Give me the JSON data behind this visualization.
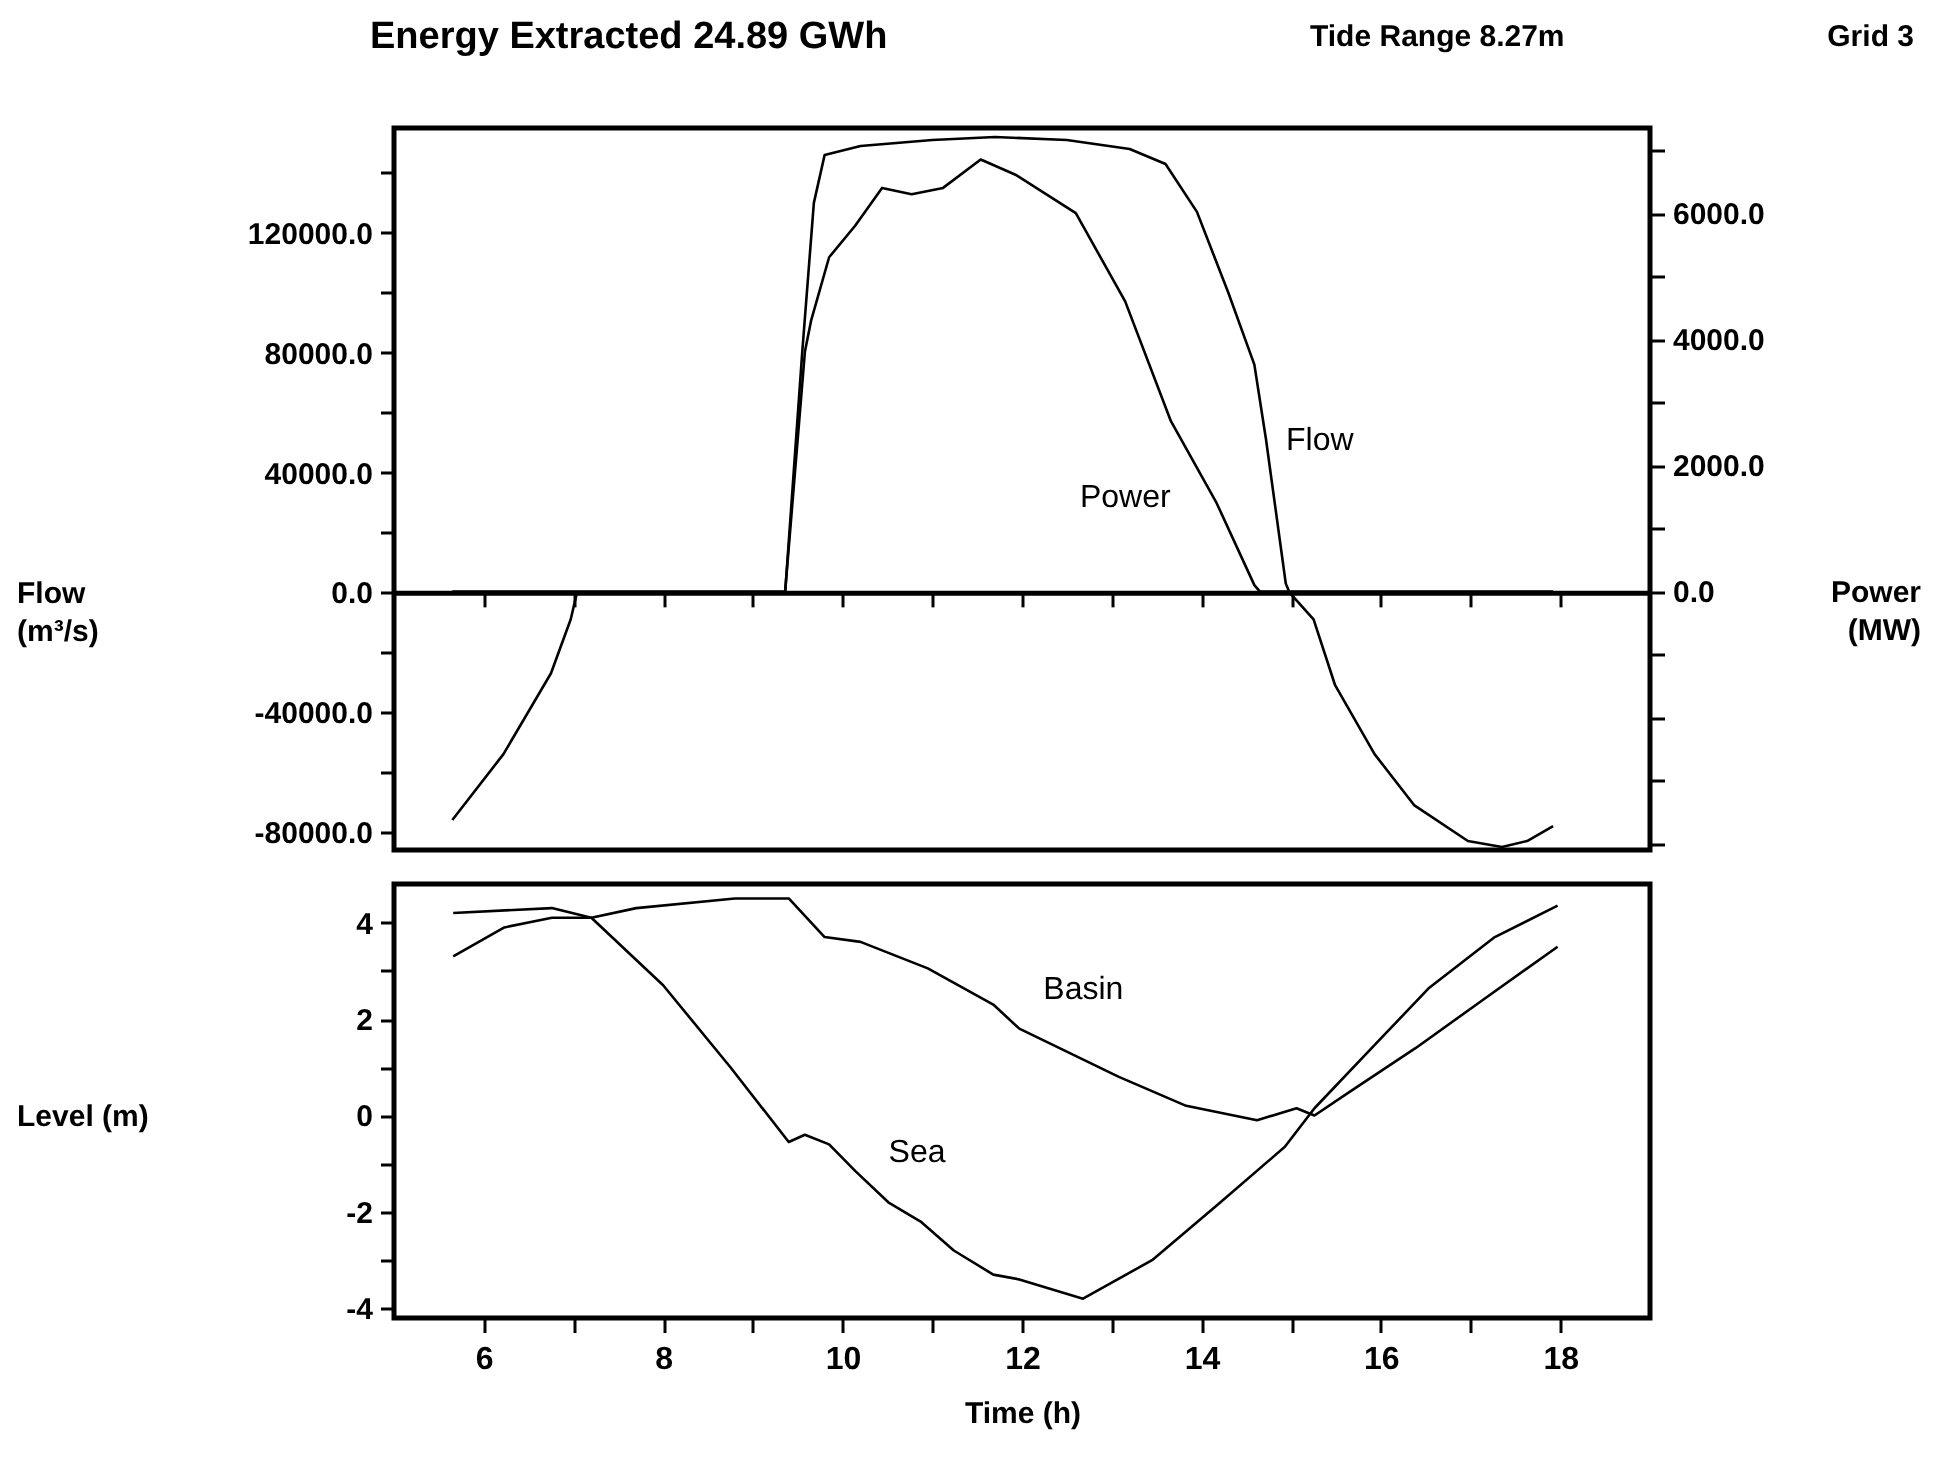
{
  "chart_data": [
    {
      "type": "line",
      "title": "Energy Extracted 24.89 GWh",
      "annotations": [
        "Tide Range 8.27m",
        "Grid 3"
      ],
      "ylabel": "Flow (m³/s)",
      "y2label": "Power (MW)",
      "tick_labels": "y",
      "xlim": [
        5,
        19
      ],
      "xticks": [
        {
          "value": 6,
          "label": null
        },
        {
          "value": 7,
          "label": null
        },
        {
          "value": 8,
          "label": null
        },
        {
          "value": 9,
          "label": null
        },
        {
          "value": 10,
          "label": null
        },
        {
          "value": 11,
          "label": null
        },
        {
          "value": 12,
          "label": null
        },
        {
          "value": 13,
          "label": null
        },
        {
          "value": 14,
          "label": null
        },
        {
          "value": 15,
          "label": null
        },
        {
          "value": 16,
          "label": null
        },
        {
          "value": 17,
          "label": null
        },
        {
          "value": 18,
          "label": null
        }
      ],
      "ylim": [
        -86000,
        155000
      ],
      "yticks": [
        {
          "value": -80000,
          "label": "-80000.0"
        },
        {
          "value": -60000,
          "label": null
        },
        {
          "value": -40000,
          "label": "-40000.0"
        },
        {
          "value": -20000,
          "label": null
        },
        {
          "value": 0,
          "label": "0.0"
        },
        {
          "value": 20000,
          "label": null
        },
        {
          "value": 40000,
          "label": "40000.0"
        },
        {
          "value": 60000,
          "label": null
        },
        {
          "value": 80000,
          "label": "80000.0"
        },
        {
          "value": 100000,
          "label": null
        },
        {
          "value": 120000,
          "label": "120000.0"
        },
        {
          "value": 140000,
          "label": null
        }
      ],
      "y2lim": [
        -4100,
        7350
      ],
      "y2ticks": [
        {
          "value": -4000,
          "label": null
        },
        {
          "value": -3000,
          "label": null
        },
        {
          "value": -2000,
          "label": null
        },
        {
          "value": -1000,
          "label": null
        },
        {
          "value": 0,
          "label": "0.0"
        },
        {
          "value": 1000,
          "label": null
        },
        {
          "value": 2000,
          "label": "2000.0"
        },
        {
          "value": 3000,
          "label": null
        },
        {
          "value": 4000,
          "label": "4000.0"
        },
        {
          "value": 5000,
          "label": null
        },
        {
          "value": 6000,
          "label": "6000.0"
        },
        {
          "value": 7000,
          "label": null
        }
      ],
      "series": [
        {
          "name": "Flow",
          "color": "#000000",
          "x": [
            5.65,
            6.22,
            6.75,
            6.97,
            7.04,
            9.36,
            9.55,
            9.68,
            9.8,
            10.2,
            11.0,
            11.7,
            12.5,
            13.2,
            13.6,
            13.95,
            14.3,
            14.59,
            14.72,
            14.94,
            14.98,
            15.25,
            15.49,
            15.93,
            16.37,
            16.97,
            17.35,
            17.63,
            17.92
          ],
          "values": [
            -76000,
            -54000,
            -27000,
            -9000,
            0,
            0,
            80000,
            130000,
            146000,
            149000,
            151000,
            152000,
            151000,
            148000,
            143000,
            127000,
            100000,
            76000,
            51000,
            3000,
            0,
            -9000,
            -31000,
            -54000,
            -71000,
            -83000,
            -85000,
            -83000,
            -78000
          ]
        },
        {
          "name": "Power",
          "color": "#000000",
          "axis": "y2",
          "x": [
            5.65,
            9.36,
            9.58,
            9.65,
            9.85,
            10.14,
            10.44,
            10.77,
            11.12,
            11.54,
            11.94,
            12.6,
            13.15,
            13.66,
            14.17,
            14.59,
            14.65,
            17.92
          ],
          "values": [
            0,
            0,
            3800,
            4300,
            5300,
            5800,
            6400,
            6300,
            6400,
            6850,
            6600,
            6000,
            4600,
            2700,
            1400,
            100,
            0,
            0
          ]
        }
      ]
    },
    {
      "type": "line",
      "xlabel": "Time (h)",
      "ylabel": "Level (m)",
      "xlim": [
        5,
        19
      ],
      "xticks": [
        6,
        {
          "value": 7,
          "label": null
        },
        8,
        {
          "value": 9,
          "label": null
        },
        10,
        {
          "value": 11,
          "label": null
        },
        12,
        {
          "value": 13,
          "label": null
        },
        14,
        {
          "value": 15,
          "label": null
        },
        16,
        {
          "value": 17,
          "label": null
        },
        18
      ],
      "ylim": [
        -4.2,
        4.8
      ],
      "yticks": [
        -4,
        {
          "value": -3,
          "label": null
        },
        -2,
        {
          "value": -1,
          "label": null
        },
        0,
        {
          "value": 1,
          "label": null
        },
        2,
        {
          "value": 3,
          "label": null
        },
        4
      ],
      "series": [
        {
          "name": "Basin",
          "color": "#000000",
          "x": [
            5.66,
            6.23,
            6.76,
            7.2,
            7.7,
            8.8,
            9.4,
            9.8,
            10.2,
            10.95,
            11.68,
            11.97,
            13.08,
            13.83,
            14.62,
            15.06,
            15.26,
            15.66,
            16.39,
            17.14,
            17.97
          ],
          "values": [
            3.3,
            3.9,
            4.1,
            4.1,
            4.3,
            4.5,
            4.5,
            3.7,
            3.6,
            3.05,
            2.3,
            1.8,
            0.8,
            0.2,
            -0.1,
            0.15,
            0,
            0.5,
            1.4,
            2.4,
            3.5
          ]
        },
        {
          "name": "Sea",
          "color": "#000000",
          "x": [
            5.66,
            6.76,
            7.2,
            8.0,
            8.75,
            9.4,
            9.58,
            9.85,
            10.14,
            10.51,
            10.87,
            11.24,
            11.68,
            11.97,
            12.68,
            13.45,
            14.18,
            14.93,
            15.26,
            15.95,
            16.54,
            17.27,
            17.97
          ],
          "values": [
            4.2,
            4.3,
            4.1,
            2.7,
            1.0,
            -0.55,
            -0.4,
            -0.6,
            -1.15,
            -1.8,
            -2.2,
            -2.8,
            -3.3,
            -3.4,
            -3.8,
            -3.0,
            -1.85,
            -0.65,
            0.15,
            1.5,
            2.65,
            3.7,
            4.35
          ]
        }
      ]
    }
  ]
}
